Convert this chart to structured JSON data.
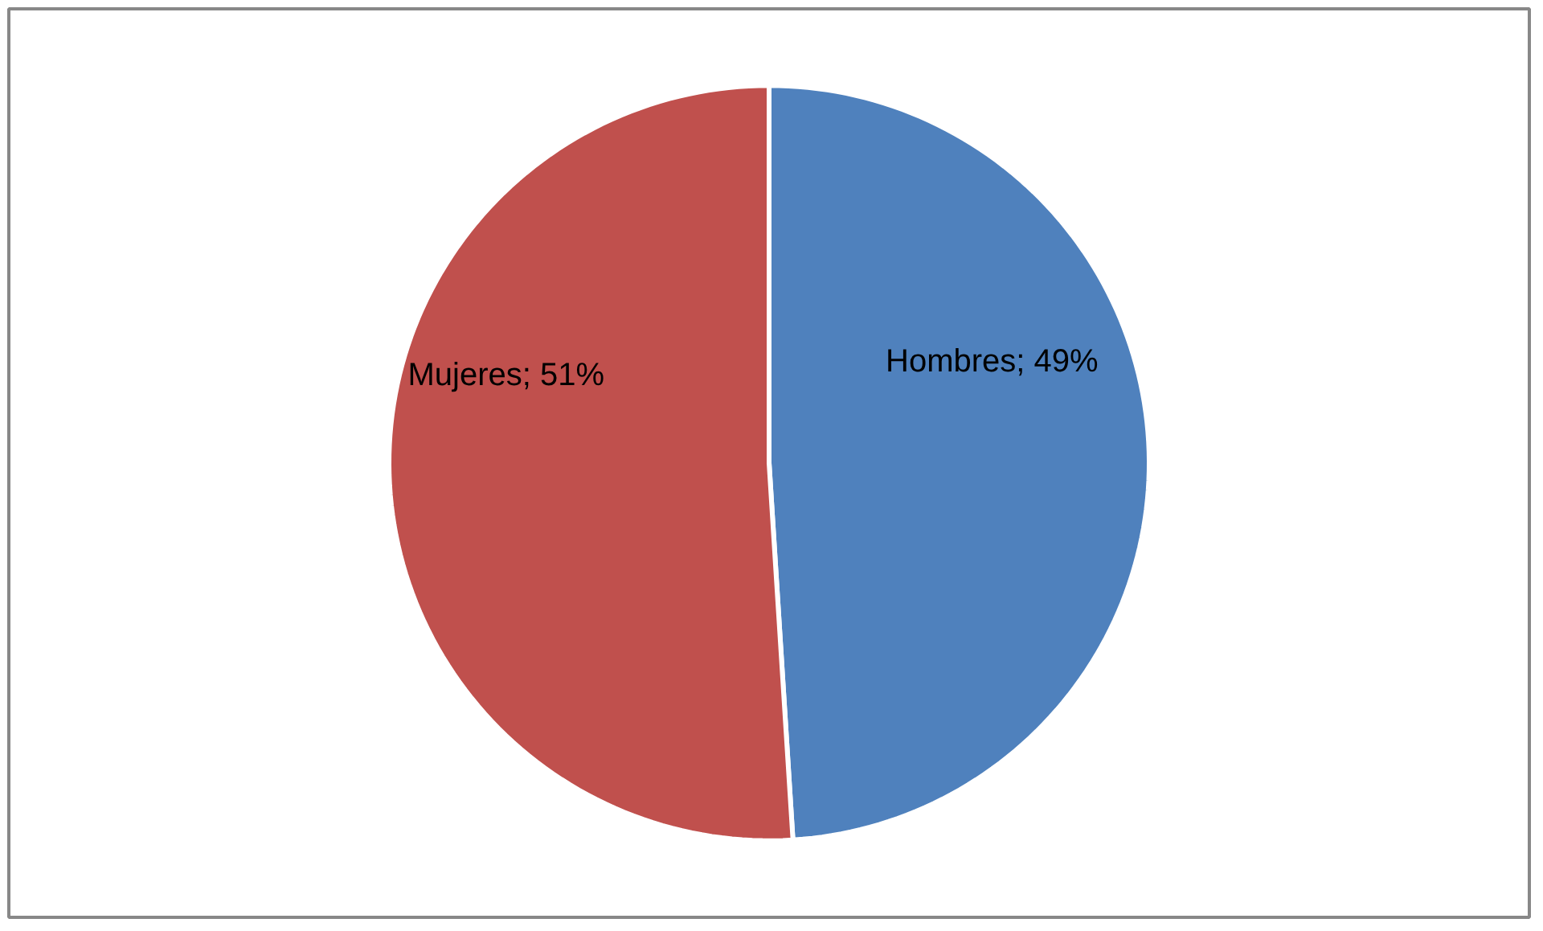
{
  "chart_data": {
    "type": "pie",
    "categories": [
      "Hombres",
      "Mujeres"
    ],
    "values": [
      49,
      51
    ],
    "colors": [
      "#4f81bd",
      "#c0504d"
    ],
    "value_labels": [
      "; 49%",
      "; 51%"
    ]
  }
}
